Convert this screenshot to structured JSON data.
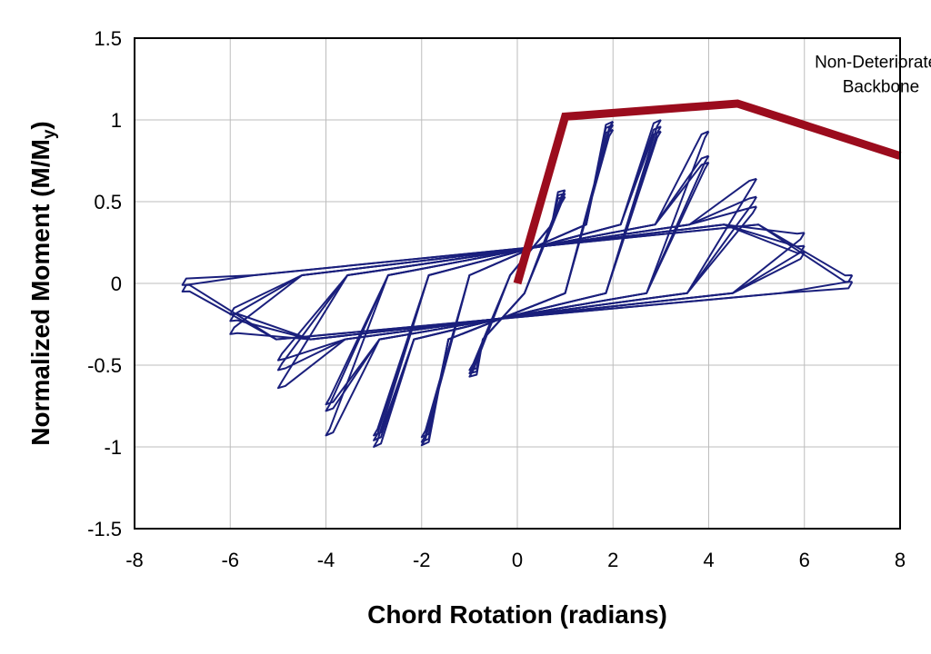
{
  "chart_data": {
    "type": "line",
    "title": "",
    "xlabel": "Chord Rotation (radians)",
    "ylabel_main": "Normalized Moment (M/M",
    "ylabel_sub": "y",
    "ylabel_end": ")",
    "xlim": [
      -8,
      8
    ],
    "ylim": [
      -1.5,
      1.5
    ],
    "xticks": [
      -8,
      -6,
      -4,
      -2,
      0,
      2,
      4,
      6,
      8
    ],
    "yticks": [
      -1.5,
      -1,
      -0.5,
      0,
      0.5,
      1,
      1.5
    ],
    "xtick_labels": [
      "-8",
      "-6",
      "-4",
      "-2",
      "0",
      "2",
      "4",
      "6",
      "8"
    ],
    "ytick_labels": [
      "-1.5",
      "-1",
      "-0.5",
      "0",
      "0.5",
      "1",
      "1.5"
    ],
    "grid": true,
    "annotation": {
      "line1": "Non-Deteriorated",
      "line2": "Backbone",
      "anchor": [
        7.6,
        1.32
      ]
    },
    "series": [
      {
        "color": "#9b0c1d",
        "style": "thick",
        "x": [
          0,
          1.0,
          4.6,
          8.0
        ],
        "y": [
          0,
          1.02,
          1.1,
          0.78
        ]
      },
      {
        "color": "#1a1f7c",
        "style": "thin",
        "cycles": [
          {
            "amp": 1,
            "peak": 0.57
          },
          {
            "amp": 1,
            "peak": 0.55
          },
          {
            "amp": 1,
            "peak": 0.53
          },
          {
            "amp": 2,
            "peak": 0.99
          },
          {
            "amp": 2,
            "peak": 0.97
          },
          {
            "amp": 2,
            "peak": 0.94
          },
          {
            "amp": 3,
            "peak": 1.0
          },
          {
            "amp": 3,
            "peak": 0.96
          },
          {
            "amp": 3,
            "peak": 0.93
          },
          {
            "amp": 4,
            "peak": 0.93
          },
          {
            "amp": 4,
            "peak": 0.78
          },
          {
            "amp": 4,
            "peak": 0.74
          },
          {
            "amp": 5,
            "peak": 0.64
          },
          {
            "amp": 5,
            "peak": 0.53
          },
          {
            "amp": 5,
            "peak": 0.47
          },
          {
            "amp": 6,
            "peak": 0.31
          },
          {
            "amp": 6,
            "peak": 0.23
          },
          {
            "amp": 6,
            "peak": 0.19
          },
          {
            "amp": 7,
            "peak": 0.05
          },
          {
            "amp": 7,
            "peak": 0.01
          }
        ]
      }
    ]
  }
}
